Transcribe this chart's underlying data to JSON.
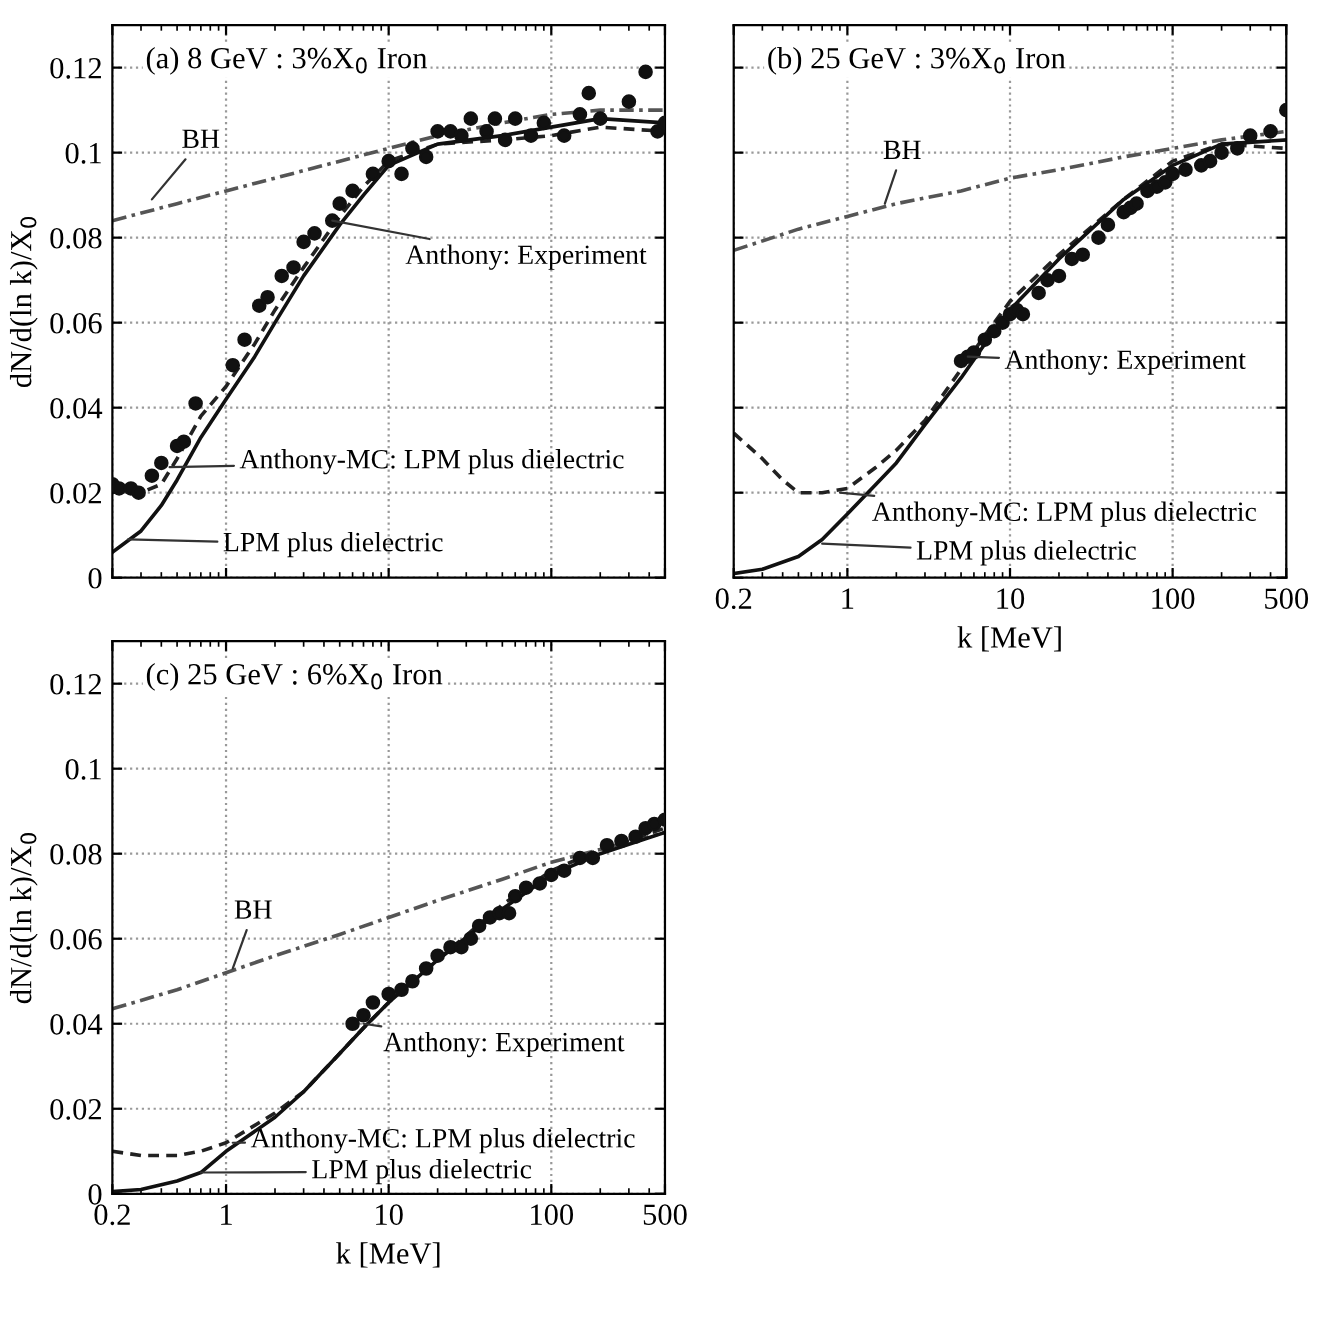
{
  "chart_data": [
    {
      "type": "line",
      "title": "(a) 8 GeV : 3%X$_{0}$ Iron",
      "ylabel": "dN/d(ln k)/X$_{0}$",
      "log": "x",
      "xlim": [
        0.2,
        500
      ],
      "xticks": [
        0.2,
        1,
        10,
        100,
        500
      ],
      "ylim": [
        0,
        0.13
      ],
      "yticks": [
        0,
        0.02,
        0.04,
        0.06,
        0.08,
        0.1,
        0.12
      ],
      "grid": true,
      "tick_labels": "y",
      "series": [
        {
          "color": "#555555",
          "line_style": "dashdot",
          "x": [
            0.2,
            0.5,
            1,
            2,
            5,
            10,
            20,
            50,
            100,
            200,
            500
          ],
          "values": [
            0.084,
            0.088,
            0.091,
            0.094,
            0.098,
            0.101,
            0.104,
            0.107,
            0.109,
            0.11,
            0.11
          ]
        },
        {
          "color": "#222222",
          "line_style": "dashed",
          "x": [
            0.2,
            0.3,
            0.4,
            0.5,
            0.7,
            1,
            1.5,
            2,
            3,
            5,
            7,
            10,
            20,
            50,
            100,
            200,
            500
          ],
          "values": [
            0.021,
            0.02,
            0.022,
            0.028,
            0.038,
            0.045,
            0.055,
            0.063,
            0.073,
            0.085,
            0.092,
            0.098,
            0.102,
            0.103,
            0.104,
            0.106,
            0.105
          ]
        },
        {
          "color": "#111111",
          "line_style": "solid",
          "x": [
            0.2,
            0.3,
            0.4,
            0.5,
            0.7,
            1,
            1.5,
            2,
            3,
            5,
            7,
            10,
            20,
            50,
            100,
            200,
            500
          ],
          "values": [
            0.006,
            0.011,
            0.017,
            0.023,
            0.033,
            0.042,
            0.052,
            0.06,
            0.071,
            0.083,
            0.09,
            0.097,
            0.102,
            0.104,
            0.106,
            0.108,
            0.107
          ]
        },
        {
          "type": "scatter",
          "color": "#111111",
          "marker": "circle",
          "x": [
            0.2,
            0.22,
            0.26,
            0.29,
            0.35,
            0.4,
            0.5,
            0.55,
            0.65,
            1.1,
            1.3,
            1.6,
            1.8,
            2.2,
            2.6,
            3,
            3.5,
            4.5,
            5,
            6,
            8,
            10,
            12,
            14,
            17,
            20,
            24,
            28,
            32,
            40,
            45,
            52,
            60,
            75,
            90,
            120,
            150,
            170,
            200,
            300,
            380,
            450,
            500
          ],
          "values": [
            0.022,
            0.021,
            0.021,
            0.02,
            0.024,
            0.027,
            0.031,
            0.032,
            0.041,
            0.05,
            0.056,
            0.064,
            0.066,
            0.071,
            0.073,
            0.079,
            0.081,
            0.084,
            0.088,
            0.091,
            0.095,
            0.098,
            0.095,
            0.101,
            0.099,
            0.105,
            0.105,
            0.104,
            0.108,
            0.105,
            0.108,
            0.103,
            0.108,
            0.104,
            0.107,
            0.104,
            0.109,
            0.114,
            0.108,
            0.112,
            0.119,
            0.105,
            0.107
          ]
        }
      ],
      "annotations": [
        {
          "text": "BH",
          "x": 0.35,
          "y": 0.089
        },
        {
          "text": "Anthony: Experiment",
          "x": 4.5,
          "y": 0.084
        },
        {
          "text": "Anthony-MC: LPM plus dielectric",
          "x": 0.45,
          "y": 0.026
        },
        {
          "text": "LPM plus dielectric",
          "x": 0.25,
          "y": 0.009
        }
      ]
    },
    {
      "type": "line",
      "title": "(b) 25 GeV : 3%X$_{0}$ Iron",
      "xlabel": "k [MeV]",
      "log": "x",
      "xlim": [
        0.2,
        500
      ],
      "xticks": [
        0.2,
        1,
        10,
        100,
        500
      ],
      "ylim": [
        0,
        0.13
      ],
      "yticks": [
        0,
        0.02,
        0.04,
        0.06,
        0.08,
        0.1,
        0.12
      ],
      "grid": true,
      "tick_labels": "x",
      "series": [
        {
          "color": "#555555",
          "line_style": "dashdot",
          "x": [
            0.2,
            0.5,
            1,
            2,
            5,
            10,
            20,
            50,
            100,
            200,
            500
          ],
          "values": [
            0.077,
            0.082,
            0.085,
            0.088,
            0.091,
            0.094,
            0.096,
            0.099,
            0.101,
            0.103,
            0.105
          ]
        },
        {
          "color": "#222222",
          "line_style": "dashed",
          "x": [
            0.2,
            0.3,
            0.4,
            0.5,
            0.7,
            1,
            1.5,
            2,
            3,
            5,
            7,
            10,
            20,
            50,
            100,
            200,
            500
          ],
          "values": [
            0.034,
            0.028,
            0.023,
            0.02,
            0.02,
            0.021,
            0.026,
            0.03,
            0.037,
            0.049,
            0.057,
            0.065,
            0.076,
            0.089,
            0.098,
            0.102,
            0.101
          ]
        },
        {
          "color": "#111111",
          "line_style": "solid",
          "x": [
            0.2,
            0.3,
            0.5,
            0.7,
            1,
            1.5,
            2,
            3,
            5,
            7,
            10,
            20,
            50,
            100,
            200,
            500
          ],
          "values": [
            0.001,
            0.002,
            0.005,
            0.009,
            0.015,
            0.022,
            0.027,
            0.036,
            0.047,
            0.055,
            0.063,
            0.075,
            0.089,
            0.097,
            0.102,
            0.103
          ]
        },
        {
          "type": "scatter",
          "color": "#111111",
          "marker": "circle",
          "x": [
            5,
            5.5,
            6,
            7,
            8,
            9,
            10,
            11,
            12,
            15,
            17,
            20,
            24,
            28,
            35,
            40,
            50,
            55,
            60,
            70,
            80,
            90,
            100,
            120,
            150,
            170,
            200,
            250,
            300,
            400,
            500
          ],
          "values": [
            0.051,
            0.052,
            0.053,
            0.056,
            0.058,
            0.06,
            0.062,
            0.063,
            0.062,
            0.067,
            0.07,
            0.071,
            0.075,
            0.076,
            0.08,
            0.083,
            0.086,
            0.087,
            0.088,
            0.091,
            0.092,
            0.093,
            0.095,
            0.096,
            0.097,
            0.098,
            0.1,
            0.101,
            0.104,
            0.105,
            0.11
          ]
        }
      ],
      "annotations": [
        {
          "text": "BH",
          "x": 1.7,
          "y": 0.088
        },
        {
          "text": "Anthony: Experiment",
          "x": 5.5,
          "y": 0.052
        },
        {
          "text": "Anthony-MC: LPM plus dielectric",
          "x": 0.9,
          "y": 0.02
        },
        {
          "text": "LPM plus dielectric",
          "x": 0.7,
          "y": 0.008
        }
      ]
    },
    {
      "type": "line",
      "title": "(c) 25 GeV : 6%X$_{0}$ Iron",
      "xlabel": "k [MeV]",
      "ylabel": "dN/d(ln k)/X$_{0}$",
      "log": "x",
      "xlim": [
        0.2,
        500
      ],
      "xticks": [
        0.2,
        1,
        10,
        100,
        500
      ],
      "ylim": [
        0,
        0.13
      ],
      "yticks": [
        0,
        0.02,
        0.04,
        0.06,
        0.08,
        0.1,
        0.12
      ],
      "grid": true,
      "series": [
        {
          "color": "#555555",
          "line_style": "dashdot",
          "x": [
            0.2,
            0.5,
            1,
            2,
            5,
            10,
            20,
            50,
            100,
            200,
            500
          ],
          "values": [
            0.0435,
            0.048,
            0.052,
            0.056,
            0.061,
            0.065,
            0.069,
            0.074,
            0.078,
            0.081,
            0.085
          ]
        },
        {
          "color": "#222222",
          "line_style": "dashed",
          "x": [
            0.2,
            0.3,
            0.5,
            0.7,
            1,
            2,
            3,
            5,
            7,
            10,
            20,
            50,
            100,
            200,
            500
          ],
          "values": [
            0.01,
            0.009,
            0.009,
            0.01,
            0.012,
            0.019,
            0.024,
            0.033,
            0.039,
            0.045,
            0.055,
            0.068,
            0.076,
            0.081,
            0.086
          ]
        },
        {
          "color": "#111111",
          "line_style": "solid",
          "x": [
            0.2,
            0.3,
            0.5,
            0.7,
            1,
            2,
            3,
            5,
            7,
            10,
            20,
            50,
            100,
            200,
            500
          ],
          "values": [
            0.0005,
            0.001,
            0.003,
            0.005,
            0.01,
            0.018,
            0.024,
            0.033,
            0.039,
            0.045,
            0.055,
            0.067,
            0.075,
            0.08,
            0.085
          ]
        },
        {
          "type": "scatter",
          "color": "#111111",
          "marker": "circle",
          "x": [
            6,
            7,
            8,
            10,
            12,
            14,
            17,
            20,
            24,
            28,
            32,
            36,
            42,
            48,
            55,
            60,
            70,
            85,
            100,
            120,
            150,
            180,
            220,
            270,
            330,
            380,
            430,
            500
          ],
          "values": [
            0.04,
            0.042,
            0.045,
            0.047,
            0.048,
            0.05,
            0.053,
            0.056,
            0.058,
            0.058,
            0.06,
            0.063,
            0.065,
            0.066,
            0.066,
            0.07,
            0.072,
            0.073,
            0.075,
            0.076,
            0.079,
            0.079,
            0.082,
            0.083,
            0.084,
            0.086,
            0.087,
            0.088
          ]
        }
      ],
      "annotations": [
        {
          "text": "BH",
          "x": 1.1,
          "y": 0.053
        },
        {
          "text": "Anthony: Experiment",
          "x": 7,
          "y": 0.04
        },
        {
          "text": "Anthony-MC: LPM plus dielectric",
          "x": 1.1,
          "y": 0.012
        },
        {
          "text": "LPM plus dielectric",
          "x": 0.7,
          "y": 0.005
        }
      ]
    }
  ]
}
